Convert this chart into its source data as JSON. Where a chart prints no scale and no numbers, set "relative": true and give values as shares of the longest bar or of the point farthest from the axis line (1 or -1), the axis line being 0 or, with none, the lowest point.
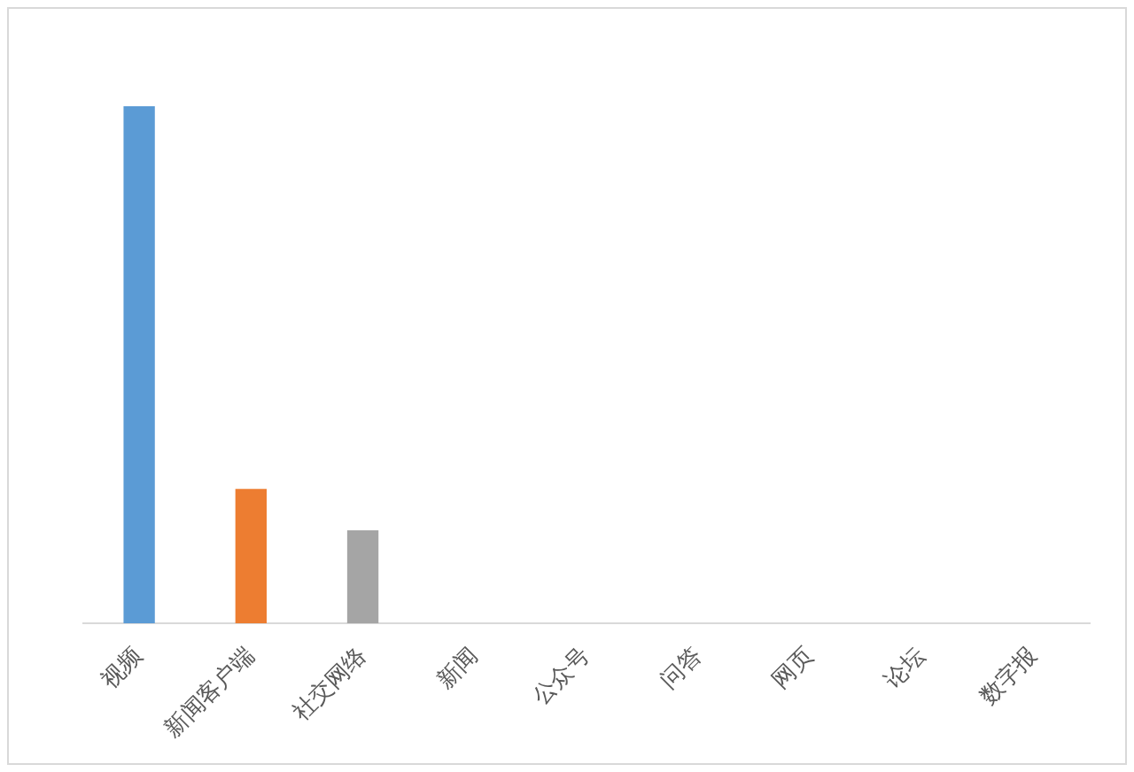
{
  "chart_data": {
    "type": "bar",
    "relative": true,
    "categories": [
      "视频",
      "新闻客户端",
      "社交网络",
      "新闻",
      "公众号",
      "问答",
      "网页",
      "论坛",
      "数字报"
    ],
    "values": [
      1,
      0.26,
      0.18,
      0,
      0,
      0,
      0,
      0,
      0
    ],
    "colors": [
      "#5b9bd5",
      "#ed7d31",
      "#a5a5a5",
      "#ffc000",
      "#4472c4",
      "#70ad47",
      "#255e91",
      "#9e480e",
      "#636363"
    ],
    "grid": false,
    "legend": false
  }
}
